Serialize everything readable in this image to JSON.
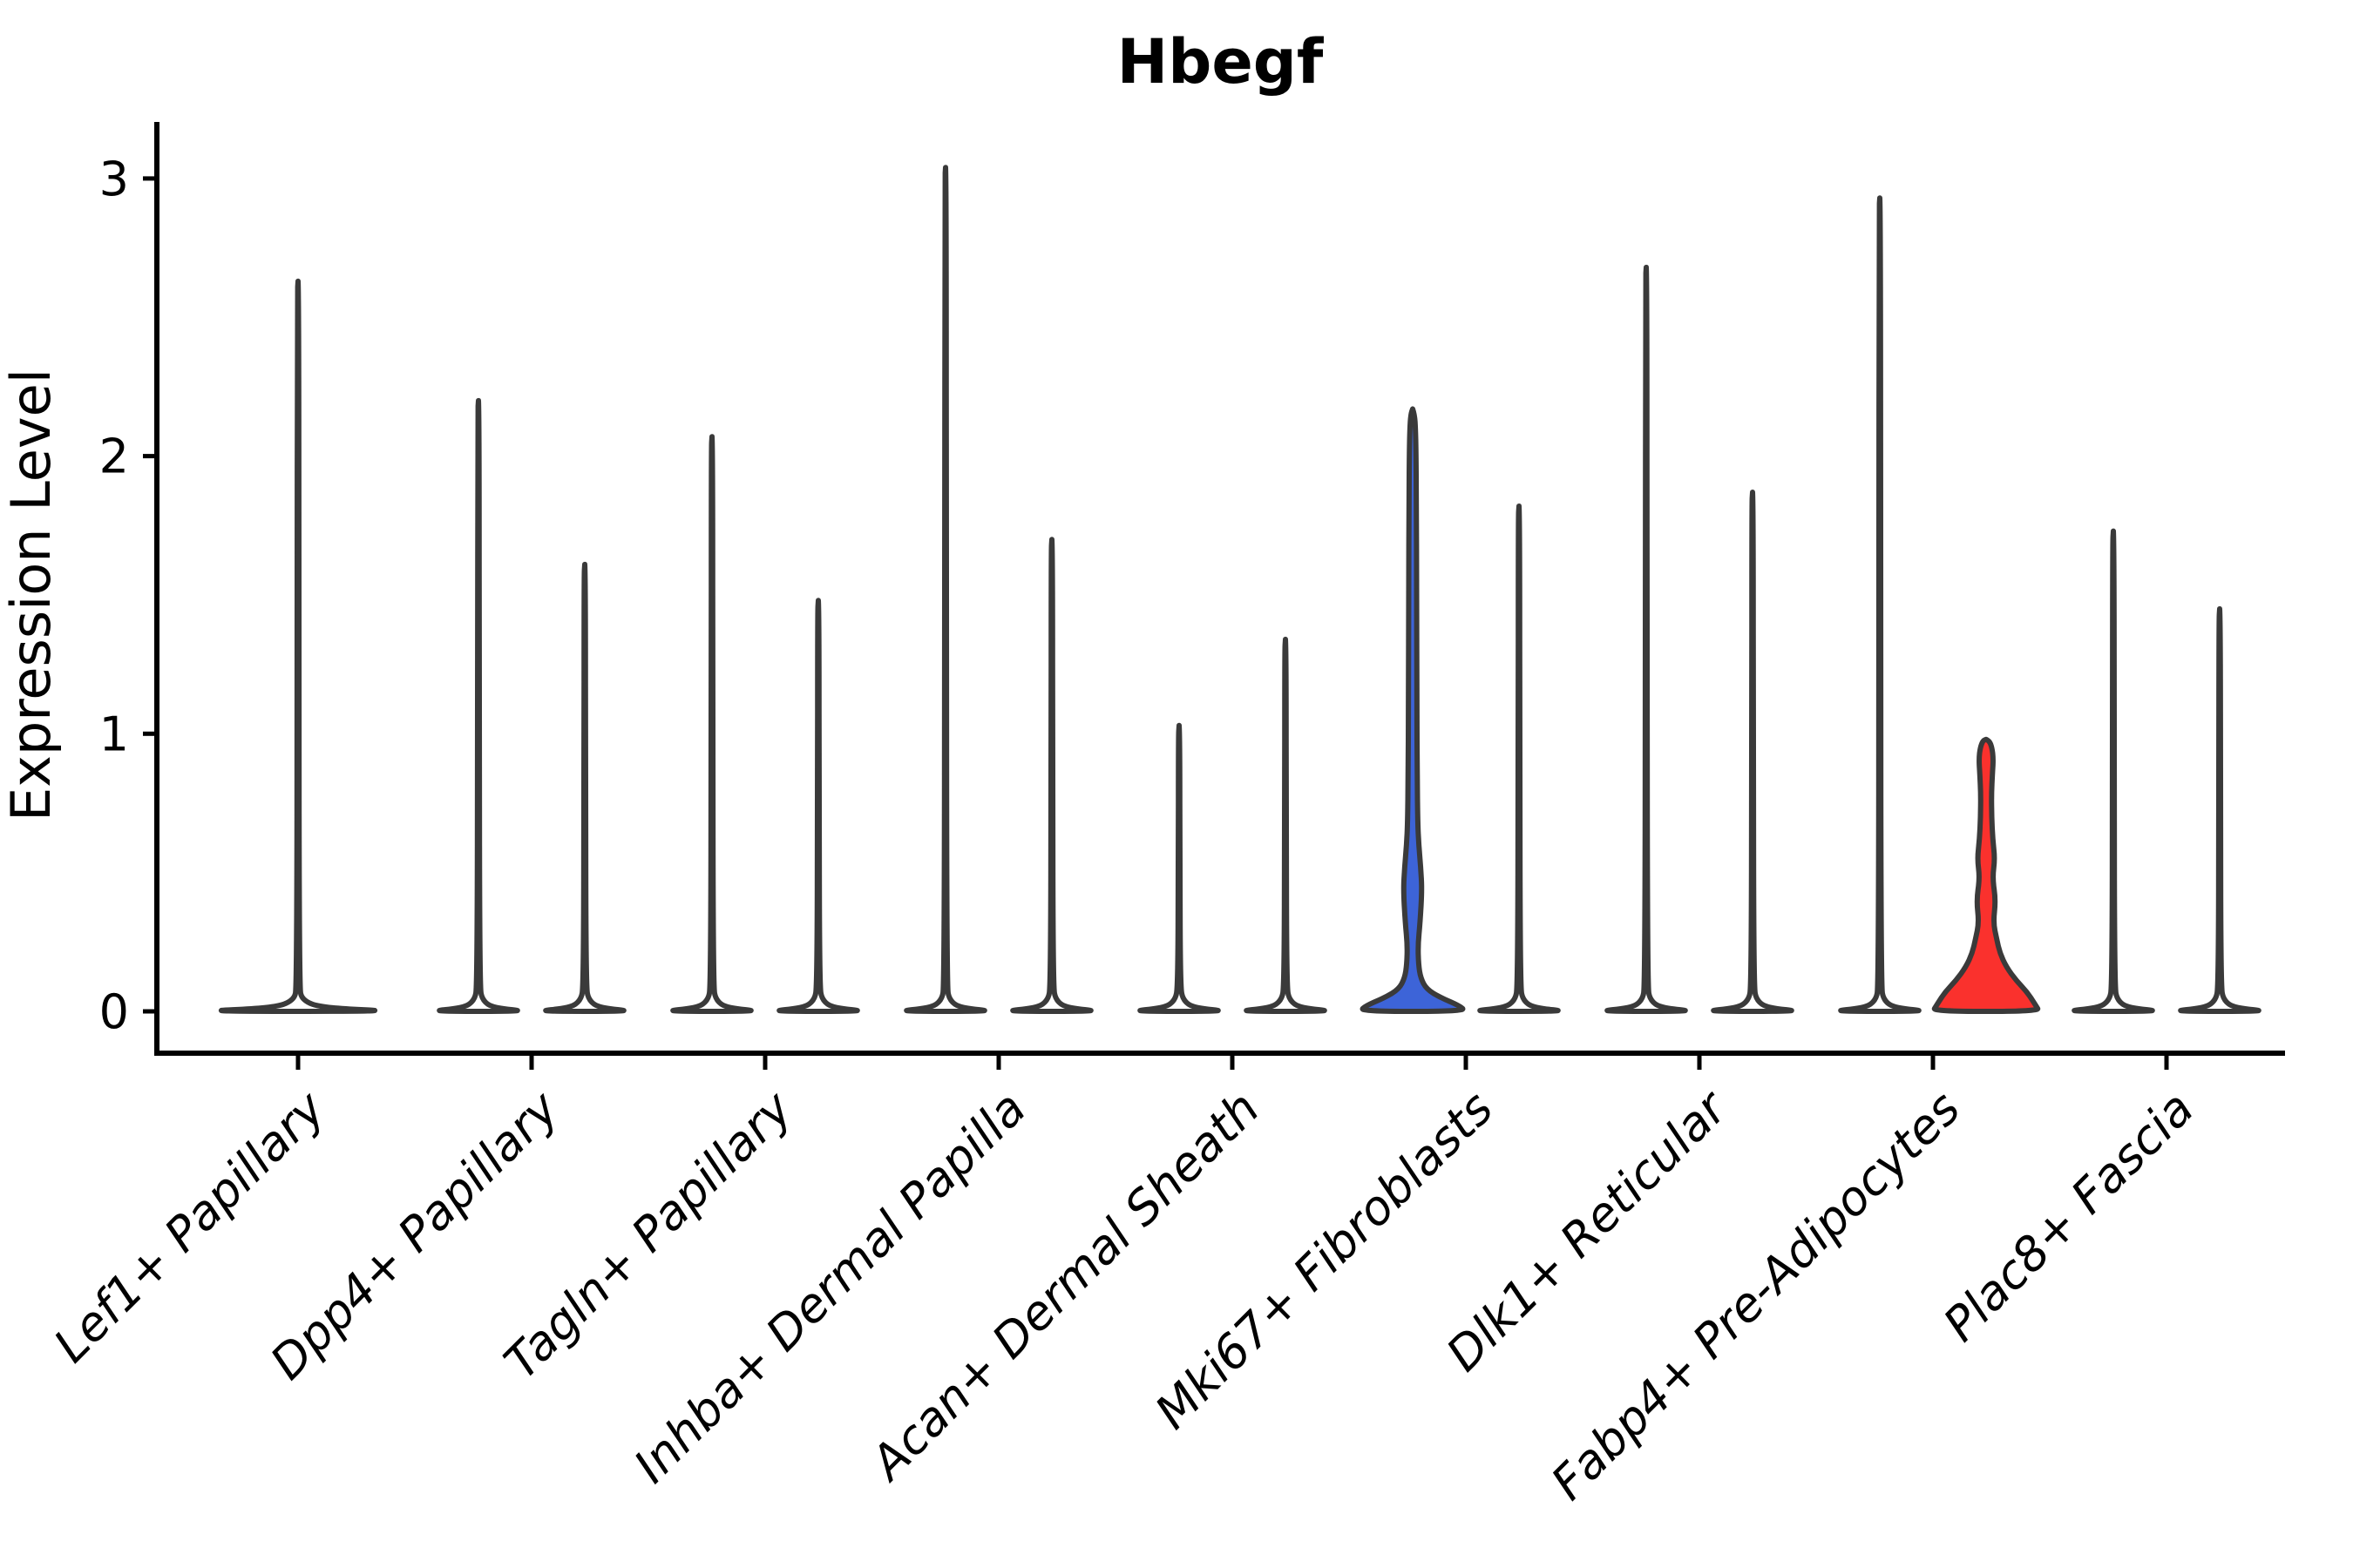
{
  "title": "Hbegf",
  "y_axis": {
    "label": "Expression Level",
    "tick_labels": [
      "0",
      "1",
      "2",
      "3"
    ]
  },
  "colors": {
    "background": "#ffffff",
    "axis": "#000000",
    "violin_outline": "#3a3a3a",
    "blue_fill": "#3d64d8",
    "red_fill": "#fa312d",
    "white_fill": "#ffffff"
  },
  "chart_data": {
    "type": "violin",
    "title": "Hbegf",
    "xlabel": "",
    "ylabel": "Expression Level",
    "ylim": [
      0,
      3.2
    ],
    "yticks": [
      0,
      1,
      2,
      3
    ],
    "grid": false,
    "legend_position": "none",
    "categories": [
      "Lef1+ Papillary",
      "Dpp4+ Papillary",
      "Tagln+ Papillary",
      "Inhba+ Dermal Papilla",
      "Acan+ Dermal Sheath",
      "Mki67+ Fibroblasts",
      "Dlk1+ Reticular",
      "Fabp4+ Pre-Adipocytes",
      "Plac8+ Fascia"
    ],
    "description": "Violin plot of Hbegf expression; most violins collapse to a flat base at 0 with a thin spike to the maximum value. Two violins are highlighted with fill color: Mki67+ Fibroblasts (left violin, blue) and Fabp4+ Pre-Adipocytes (right violin, red).",
    "violins": [
      {
        "category_index": 0,
        "side": "center",
        "fill": "white",
        "max_expression": 2.63
      },
      {
        "category_index": 1,
        "side": "left",
        "fill": "white",
        "max_expression": 2.2
      },
      {
        "category_index": 1,
        "side": "right",
        "fill": "white",
        "max_expression": 1.61
      },
      {
        "category_index": 2,
        "side": "left",
        "fill": "white",
        "max_expression": 2.07
      },
      {
        "category_index": 2,
        "side": "right",
        "fill": "white",
        "max_expression": 1.48
      },
      {
        "category_index": 3,
        "side": "left",
        "fill": "white",
        "max_expression": 3.04
      },
      {
        "category_index": 3,
        "side": "right",
        "fill": "white",
        "max_expression": 1.7
      },
      {
        "category_index": 4,
        "side": "left",
        "fill": "white",
        "max_expression": 1.03
      },
      {
        "category_index": 4,
        "side": "right",
        "fill": "white",
        "max_expression": 1.34
      },
      {
        "category_index": 5,
        "side": "left",
        "fill": "blue",
        "max_expression": 2.17,
        "profile": [
          [
            0,
            1.0
          ],
          [
            0.02,
            0.88
          ],
          [
            0.05,
            0.52
          ],
          [
            0.08,
            0.26
          ],
          [
            0.12,
            0.15
          ],
          [
            0.17,
            0.11
          ],
          [
            0.24,
            0.1
          ],
          [
            0.32,
            0.14
          ],
          [
            0.44,
            0.175
          ],
          [
            0.52,
            0.15
          ],
          [
            0.6,
            0.115
          ],
          [
            0.68,
            0.095
          ],
          [
            0.85,
            0.085
          ],
          [
            1.1,
            0.08
          ],
          [
            1.5,
            0.075
          ],
          [
            1.85,
            0.07
          ],
          [
            2.02,
            0.062
          ],
          [
            2.1,
            0.052
          ],
          [
            2.15,
            0.035
          ],
          [
            2.17,
            0.0
          ]
        ]
      },
      {
        "category_index": 5,
        "side": "right",
        "fill": "white",
        "max_expression": 1.82
      },
      {
        "category_index": 6,
        "side": "left",
        "fill": "white",
        "max_expression": 2.68
      },
      {
        "category_index": 6,
        "side": "right",
        "fill": "white",
        "max_expression": 1.87
      },
      {
        "category_index": 7,
        "side": "left",
        "fill": "white",
        "max_expression": 2.93
      },
      {
        "category_index": 7,
        "side": "right",
        "fill": "red",
        "max_expression": 0.98,
        "profile": [
          [
            0,
            1.0
          ],
          [
            0.02,
            0.94
          ],
          [
            0.07,
            0.77
          ],
          [
            0.11,
            0.57
          ],
          [
            0.16,
            0.38
          ],
          [
            0.21,
            0.26
          ],
          [
            0.26,
            0.2
          ],
          [
            0.32,
            0.135
          ],
          [
            0.4,
            0.18
          ],
          [
            0.48,
            0.12
          ],
          [
            0.55,
            0.165
          ],
          [
            0.62,
            0.125
          ],
          [
            0.7,
            0.105
          ],
          [
            0.78,
            0.1
          ],
          [
            0.86,
            0.12
          ],
          [
            0.91,
            0.135
          ],
          [
            0.95,
            0.11
          ],
          [
            0.975,
            0.06
          ],
          [
            0.98,
            0.0
          ]
        ]
      },
      {
        "category_index": 8,
        "side": "left",
        "fill": "white",
        "max_expression": 1.73
      },
      {
        "category_index": 8,
        "side": "right",
        "fill": "white",
        "max_expression": 1.45
      }
    ]
  }
}
